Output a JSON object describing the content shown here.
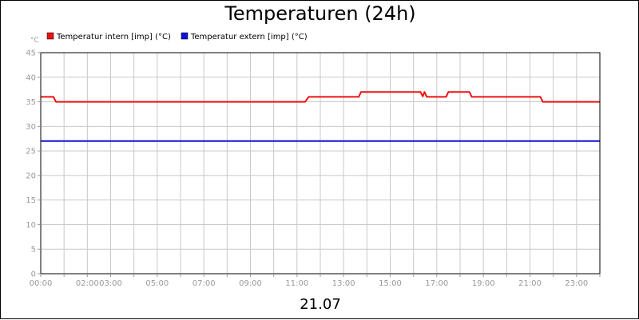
{
  "chart_data": {
    "type": "line",
    "title": "Temperaturen (24h)",
    "ylabel": "°C",
    "xlabel": "21.07",
    "ylim": [
      0,
      45
    ],
    "yticks": [
      0,
      5,
      10,
      15,
      20,
      25,
      30,
      35,
      40,
      45
    ],
    "xlim_hours": [
      0,
      24
    ],
    "xticks": [
      {
        "label": "00:00",
        "h": 0
      },
      {
        "label": "02:00",
        "h": 2
      },
      {
        "label": "03:00",
        "h": 3
      },
      {
        "label": "05:00",
        "h": 5
      },
      {
        "label": "07:00",
        "h": 7
      },
      {
        "label": "09:00",
        "h": 9
      },
      {
        "label": "11:00",
        "h": 11
      },
      {
        "label": "13:00",
        "h": 13
      },
      {
        "label": "15:00",
        "h": 15
      },
      {
        "label": "17:00",
        "h": 17
      },
      {
        "label": "19:00",
        "h": 19
      },
      {
        "label": "21:00",
        "h": 21
      },
      {
        "label": "23:00",
        "h": 23
      }
    ],
    "grid": true,
    "legend_position": "top-left",
    "series": [
      {
        "name": "Temperatur intern [imp] (°C)",
        "color": "#ee1111",
        "points": [
          [
            0.0,
            36
          ],
          [
            0.55,
            36
          ],
          [
            0.65,
            35
          ],
          [
            11.35,
            35
          ],
          [
            11.5,
            36
          ],
          [
            13.65,
            36
          ],
          [
            13.75,
            37
          ],
          [
            16.3,
            37
          ],
          [
            16.4,
            36.1
          ],
          [
            16.47,
            37
          ],
          [
            16.57,
            36
          ],
          [
            17.4,
            36
          ],
          [
            17.5,
            37
          ],
          [
            18.4,
            37
          ],
          [
            18.5,
            36
          ],
          [
            21.45,
            36
          ],
          [
            21.55,
            35
          ],
          [
            24.0,
            35
          ]
        ]
      },
      {
        "name": "Temperatur extern [imp] (°C)",
        "color": "#1111dd",
        "points": [
          [
            0.0,
            27
          ],
          [
            24.0,
            27
          ]
        ]
      }
    ]
  }
}
